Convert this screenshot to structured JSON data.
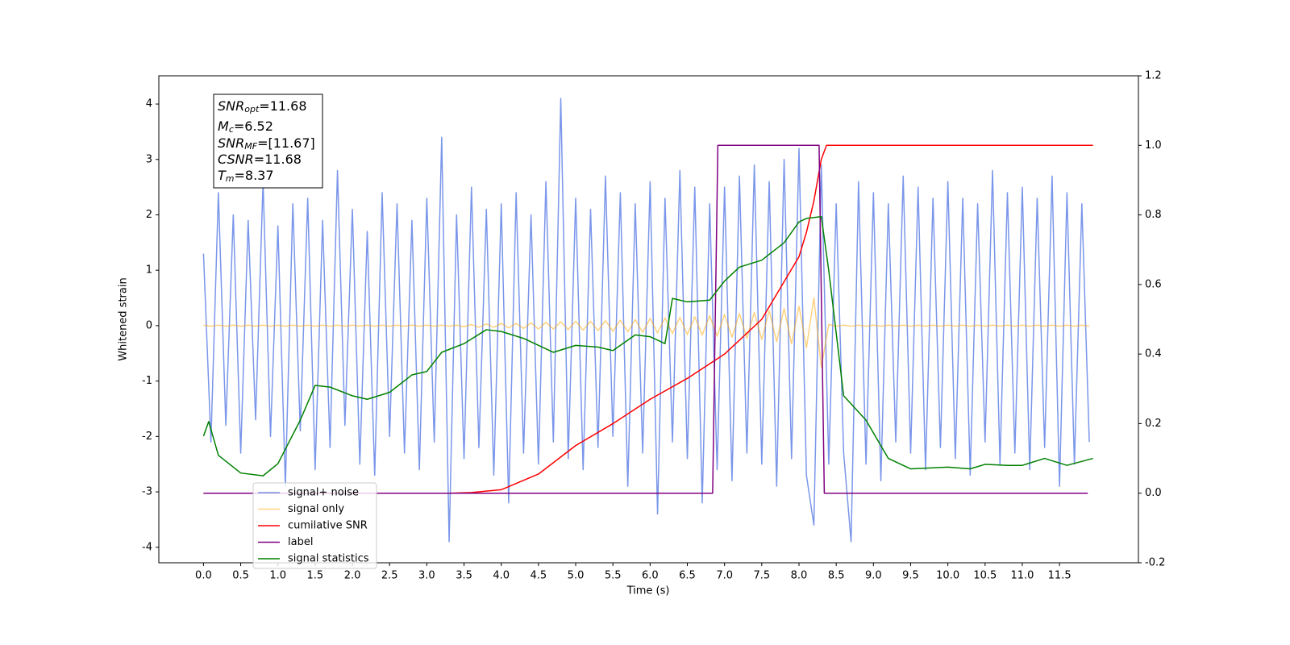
{
  "chart_data": {
    "type": "line",
    "xlabel": "Time (s)",
    "ylabel": "Whitened strain",
    "xlim": [
      -0.6,
      12.56
    ],
    "ylim": [
      -4.28,
      4.51
    ],
    "y2lim": [
      -0.2,
      1.2
    ],
    "xticks": [
      {
        "value": 0,
        "label": "0.0"
      },
      0.5,
      {
        "value": 1,
        "label": "1.0"
      },
      1.5,
      {
        "value": 2,
        "label": "2.0"
      },
      2.5,
      {
        "value": 3,
        "label": "3.0"
      },
      3.5,
      {
        "value": 4,
        "label": "4.0"
      },
      4.5,
      {
        "value": 5,
        "label": "5.0"
      },
      5.5,
      {
        "value": 6,
        "label": "6.0"
      },
      6.5,
      {
        "value": 7,
        "label": "7.0"
      },
      7.5,
      {
        "value": 8,
        "label": "8.0"
      },
      8.5,
      {
        "value": 9,
        "label": "9.0"
      },
      9.5,
      {
        "value": 10,
        "label": "10.0"
      },
      10.5,
      {
        "value": 11,
        "label": "11.0"
      },
      11.5
    ],
    "yticks": [
      -4,
      -3,
      -2,
      -1,
      0,
      1,
      2,
      3,
      4
    ],
    "y2ticks": [
      -0.2,
      {
        "value": 0,
        "label": "0.0"
      },
      0.2,
      0.4,
      0.6,
      0.8,
      {
        "value": 1,
        "label": "1.0"
      },
      1.2
    ],
    "annotation": [
      {
        "base": "SNR",
        "sub": "opt",
        "rest": "=11.68"
      },
      {
        "base": "M",
        "sub": "c",
        "rest": "=6.52"
      },
      {
        "base": "SNR",
        "sub": "MF",
        "rest": "=[11.67]"
      },
      {
        "base": "CSNR",
        "sub": "",
        "rest": "=11.68"
      },
      {
        "base": "T",
        "sub": "m",
        "rest": "=8.37"
      }
    ],
    "series": [
      {
        "name": "signal+ noise",
        "color": "#4169e1",
        "alpha": 0.7,
        "axis": "y",
        "x": [
          0.0,
          0.1,
          0.2,
          0.3,
          0.4,
          0.5,
          0.6,
          0.7,
          0.8,
          0.9,
          1.0,
          1.1,
          1.2,
          1.3,
          1.4,
          1.5,
          1.6,
          1.7,
          1.8,
          1.9,
          2.0,
          2.1,
          2.2,
          2.3,
          2.4,
          2.5,
          2.6,
          2.7,
          2.8,
          2.9,
          3.0,
          3.1,
          3.2,
          3.3,
          3.4,
          3.5,
          3.6,
          3.7,
          3.8,
          3.9,
          4.0,
          4.1,
          4.2,
          4.3,
          4.4,
          4.5,
          4.6,
          4.7,
          4.8,
          4.9,
          5.0,
          5.1,
          5.2,
          5.3,
          5.4,
          5.5,
          5.6,
          5.7,
          5.8,
          5.9,
          6.0,
          6.1,
          6.2,
          6.3,
          6.4,
          6.5,
          6.6,
          6.7,
          6.8,
          6.9,
          7.0,
          7.1,
          7.2,
          7.3,
          7.4,
          7.5,
          7.6,
          7.7,
          7.8,
          7.9,
          8.0,
          8.1,
          8.2,
          8.3,
          8.4,
          8.5,
          8.6,
          8.7,
          8.8,
          8.9,
          9.0,
          9.1,
          9.2,
          9.3,
          9.4,
          9.5,
          9.6,
          9.7,
          9.8,
          9.9,
          10.0,
          10.1,
          10.2,
          10.3,
          10.4,
          10.5,
          10.6,
          10.7,
          10.8,
          10.9,
          11.0,
          11.1,
          11.2,
          11.3,
          11.4,
          11.5,
          11.6,
          11.7,
          11.8,
          11.9
        ],
        "values": [
          1.3,
          -2.1,
          2.4,
          -1.8,
          2.0,
          -2.3,
          1.9,
          -1.7,
          2.6,
          -2.0,
          1.8,
          -2.9,
          2.2,
          -1.9,
          2.3,
          -2.6,
          1.9,
          -2.2,
          2.8,
          -1.8,
          2.1,
          -2.5,
          1.7,
          -2.7,
          2.4,
          -2.0,
          2.2,
          -2.3,
          1.9,
          -2.6,
          2.3,
          -2.1,
          3.4,
          -3.9,
          2.0,
          -2.4,
          2.5,
          -2.2,
          2.1,
          -2.7,
          2.2,
          -3.2,
          2.4,
          -2.3,
          2.0,
          -2.5,
          2.6,
          -2.1,
          4.1,
          -2.4,
          2.3,
          -2.6,
          2.1,
          -2.2,
          2.7,
          -2.0,
          2.4,
          -2.9,
          2.2,
          -2.3,
          2.6,
          -3.4,
          2.3,
          -2.1,
          2.8,
          -2.4,
          2.5,
          -3.2,
          2.2,
          -2.6,
          2.5,
          -2.8,
          2.7,
          -2.3,
          2.9,
          -2.5,
          2.6,
          -2.9,
          3.0,
          -2.4,
          3.2,
          -2.7,
          -3.6,
          2.9,
          -2.5,
          2.2,
          -2.3,
          -3.9,
          2.6,
          -2.5,
          2.4,
          -2.8,
          2.2,
          -2.1,
          2.7,
          -2.3,
          2.5,
          -2.6,
          2.3,
          -2.2,
          2.6,
          -2.4,
          2.3,
          -2.7,
          2.2,
          -2.1,
          2.8,
          -2.5,
          2.4,
          -2.3,
          2.5,
          -2.6,
          2.3,
          -2.2,
          2.7,
          -2.9,
          2.4,
          -2.5,
          2.2,
          -2.1
        ]
      },
      {
        "name": "signal only",
        "color": "#ffa500",
        "alpha": 0.5,
        "axis": "y",
        "x": [
          0.0,
          0.1,
          0.2,
          0.3,
          0.4,
          0.5,
          0.6,
          0.7,
          0.8,
          0.9,
          1.0,
          1.1,
          1.2,
          1.3,
          1.4,
          1.5,
          1.6,
          1.7,
          1.8,
          1.9,
          2.0,
          2.1,
          2.2,
          2.3,
          2.4,
          2.5,
          2.6,
          2.7,
          2.8,
          2.9,
          3.0,
          3.1,
          3.2,
          3.3,
          3.4,
          3.5,
          3.6,
          3.7,
          3.8,
          3.9,
          4.0,
          4.1,
          4.2,
          4.3,
          4.4,
          4.5,
          4.6,
          4.7,
          4.8,
          4.9,
          5.0,
          5.1,
          5.2,
          5.3,
          5.4,
          5.5,
          5.6,
          5.7,
          5.8,
          5.9,
          6.0,
          6.1,
          6.2,
          6.3,
          6.4,
          6.5,
          6.6,
          6.7,
          6.8,
          6.9,
          7.0,
          7.1,
          7.2,
          7.3,
          7.4,
          7.5,
          7.6,
          7.7,
          7.8,
          7.9,
          8.0,
          8.1,
          8.2,
          8.3,
          8.4,
          8.5,
          8.6,
          8.7,
          8.8,
          8.9,
          9.0,
          9.1,
          9.2,
          9.3,
          9.4,
          9.5,
          9.6,
          9.7,
          9.8,
          9.9,
          10.0,
          10.1,
          10.2,
          10.3,
          10.4,
          10.5,
          10.6,
          10.7,
          10.8,
          10.9,
          11.0,
          11.1,
          11.2,
          11.3,
          11.4,
          11.5,
          11.6,
          11.7,
          11.8,
          11.9
        ],
        "values": [
          0.01,
          -0.01,
          0.01,
          -0.01,
          0.01,
          -0.01,
          0.01,
          -0.01,
          0.01,
          -0.01,
          0.01,
          -0.01,
          0.01,
          -0.01,
          0.01,
          -0.01,
          0.01,
          -0.01,
          0.01,
          -0.01,
          0.01,
          -0.01,
          0.01,
          -0.01,
          0.01,
          -0.01,
          0.01,
          -0.01,
          0.01,
          -0.01,
          0.01,
          -0.01,
          0.01,
          -0.01,
          0.01,
          -0.02,
          0.02,
          -0.03,
          0.03,
          -0.03,
          0.04,
          -0.04,
          0.04,
          -0.05,
          0.05,
          -0.06,
          0.06,
          -0.06,
          0.07,
          -0.07,
          0.08,
          -0.08,
          0.08,
          -0.09,
          0.09,
          -0.1,
          0.1,
          -0.11,
          0.11,
          -0.12,
          0.13,
          -0.13,
          0.14,
          -0.14,
          0.15,
          -0.16,
          0.16,
          -0.17,
          0.18,
          -0.19,
          0.2,
          -0.21,
          0.22,
          -0.23,
          0.24,
          -0.25,
          0.27,
          -0.29,
          0.31,
          -0.33,
          0.35,
          -0.4,
          0.5,
          -0.75,
          0.02,
          -0.01,
          0.01,
          -0.01,
          0.01,
          -0.01,
          0.01,
          -0.01,
          0.01,
          -0.01,
          0.01,
          -0.01,
          0.01,
          -0.01,
          0.01,
          -0.01,
          0.01,
          -0.01,
          0.01,
          -0.01,
          0.01,
          -0.01,
          0.01,
          -0.01,
          0.01,
          -0.01,
          0.01,
          -0.01,
          0.01,
          -0.01,
          0.01,
          -0.01,
          0.01,
          -0.01,
          0.01,
          -0.01
        ]
      },
      {
        "name": "cumilative SNR",
        "color": "#ff0000",
        "alpha": 1,
        "axis": "y2",
        "x": [
          0,
          3.3,
          3.6,
          4.0,
          4.5,
          5.0,
          5.5,
          6.0,
          6.5,
          7.0,
          7.5,
          8.0,
          8.1,
          8.2,
          8.3,
          8.37,
          11.95
        ],
        "values": [
          0,
          0,
          0.002,
          0.01,
          0.055,
          0.137,
          0.2,
          0.27,
          0.33,
          0.4,
          0.5,
          0.68,
          0.75,
          0.84,
          0.96,
          1.0,
          1.0
        ]
      },
      {
        "name": "label",
        "color": "#800080",
        "alpha": 1,
        "axis": "y2",
        "x": [
          0,
          6.84,
          6.91,
          8.27,
          8.34,
          11.88
        ],
        "values": [
          0,
          0,
          1,
          1,
          0,
          0
        ]
      },
      {
        "name": "signal statistics",
        "color": "#008000",
        "alpha": 1,
        "axis": "y2",
        "x": [
          0.0,
          0.07,
          0.2,
          0.5,
          0.8,
          1.0,
          1.3,
          1.5,
          1.7,
          2.0,
          2.2,
          2.5,
          2.8,
          3.0,
          3.2,
          3.5,
          3.8,
          4.0,
          4.3,
          4.7,
          5.0,
          5.3,
          5.5,
          5.8,
          6.0,
          6.2,
          6.3,
          6.5,
          6.8,
          7.0,
          7.2,
          7.5,
          7.8,
          8.0,
          8.1,
          8.3,
          8.4,
          8.6,
          8.9,
          9.2,
          9.5,
          10.0,
          10.3,
          10.5,
          10.8,
          11.0,
          11.3,
          11.6,
          11.95
        ],
        "values": [
          0.164,
          0.206,
          0.109,
          0.058,
          0.05,
          0.085,
          0.21,
          0.31,
          0.305,
          0.28,
          0.27,
          0.29,
          0.34,
          0.35,
          0.405,
          0.43,
          0.47,
          0.465,
          0.445,
          0.405,
          0.425,
          0.42,
          0.41,
          0.455,
          0.45,
          0.43,
          0.56,
          0.55,
          0.555,
          0.61,
          0.65,
          0.67,
          0.72,
          0.78,
          0.79,
          0.795,
          0.64,
          0.28,
          0.21,
          0.1,
          0.07,
          0.075,
          0.07,
          0.083,
          0.08,
          0.08,
          0.1,
          0.08,
          0.1
        ]
      }
    ]
  }
}
